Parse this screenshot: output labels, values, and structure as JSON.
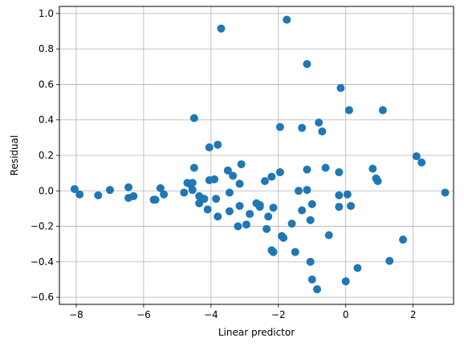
{
  "chart_data": {
    "type": "scatter",
    "title": "",
    "xlabel": "Linear predictor",
    "ylabel": "Residual",
    "xlim": [
      -8.5,
      3.2
    ],
    "ylim": [
      -0.64,
      1.04
    ],
    "xticks": [
      -8,
      -6,
      -4,
      -2,
      0,
      2
    ],
    "xtick_labels": [
      "−8",
      "−6",
      "−4",
      "−2",
      "0",
      "2"
    ],
    "yticks": [
      -0.6,
      -0.4,
      -0.2,
      0.0,
      0.2,
      0.4,
      0.6,
      0.8,
      1.0
    ],
    "ytick_labels": [
      "−0.6",
      "−0.4",
      "−0.2",
      "0.0",
      "0.2",
      "0.4",
      "0.6",
      "0.8",
      "1.0"
    ],
    "grid": true,
    "point_color": "#1f77b4",
    "points": [
      {
        "x": -8.05,
        "y": 0.01
      },
      {
        "x": -7.9,
        "y": -0.02
      },
      {
        "x": -7.35,
        "y": -0.025
      },
      {
        "x": -7.0,
        "y": 0.005
      },
      {
        "x": -6.45,
        "y": 0.02
      },
      {
        "x": -6.45,
        "y": -0.04
      },
      {
        "x": -6.3,
        "y": -0.03
      },
      {
        "x": -5.7,
        "y": -0.05
      },
      {
        "x": -5.65,
        "y": -0.05
      },
      {
        "x": -5.5,
        "y": 0.015
      },
      {
        "x": -5.4,
        "y": -0.02
      },
      {
        "x": -4.8,
        "y": -0.01
      },
      {
        "x": -4.7,
        "y": 0.045
      },
      {
        "x": -4.6,
        "y": 0.035
      },
      {
        "x": -4.55,
        "y": 0.045
      },
      {
        "x": -4.55,
        "y": 0.005
      },
      {
        "x": -4.5,
        "y": 0.41
      },
      {
        "x": -4.5,
        "y": 0.13
      },
      {
        "x": -4.35,
        "y": -0.07
      },
      {
        "x": -4.35,
        "y": -0.03
      },
      {
        "x": -4.2,
        "y": -0.045
      },
      {
        "x": -4.1,
        "y": -0.105
      },
      {
        "x": -4.05,
        "y": 0.245
      },
      {
        "x": -4.05,
        "y": 0.06
      },
      {
        "x": -3.9,
        "y": 0.065
      },
      {
        "x": -3.85,
        "y": -0.045
      },
      {
        "x": -3.8,
        "y": -0.145
      },
      {
        "x": -3.8,
        "y": 0.26
      },
      {
        "x": -3.7,
        "y": 0.915
      },
      {
        "x": -3.5,
        "y": 0.115
      },
      {
        "x": -3.45,
        "y": -0.01
      },
      {
        "x": -3.45,
        "y": -0.115
      },
      {
        "x": -3.35,
        "y": 0.085
      },
      {
        "x": -3.2,
        "y": -0.2
      },
      {
        "x": -3.15,
        "y": 0.04
      },
      {
        "x": -3.15,
        "y": -0.085
      },
      {
        "x": -3.1,
        "y": 0.15
      },
      {
        "x": -2.95,
        "y": -0.19
      },
      {
        "x": -2.85,
        "y": -0.13
      },
      {
        "x": -2.65,
        "y": -0.07
      },
      {
        "x": -2.55,
        "y": -0.08
      },
      {
        "x": -2.55,
        "y": -0.09
      },
      {
        "x": -2.4,
        "y": 0.055
      },
      {
        "x": -2.35,
        "y": -0.215
      },
      {
        "x": -2.3,
        "y": -0.145
      },
      {
        "x": -2.2,
        "y": 0.08
      },
      {
        "x": -2.2,
        "y": -0.335
      },
      {
        "x": -2.15,
        "y": -0.345
      },
      {
        "x": -2.15,
        "y": -0.095
      },
      {
        "x": -1.95,
        "y": 0.36
      },
      {
        "x": -1.95,
        "y": 0.105
      },
      {
        "x": -1.9,
        "y": -0.255
      },
      {
        "x": -1.85,
        "y": -0.265
      },
      {
        "x": -1.75,
        "y": 0.965
      },
      {
        "x": -1.6,
        "y": -0.185
      },
      {
        "x": -1.5,
        "y": -0.345
      },
      {
        "x": -1.4,
        "y": 0.0
      },
      {
        "x": -1.3,
        "y": 0.355
      },
      {
        "x": -1.3,
        "y": -0.11
      },
      {
        "x": -1.15,
        "y": 0.715
      },
      {
        "x": -1.15,
        "y": 0.12
      },
      {
        "x": -1.15,
        "y": 0.005
      },
      {
        "x": -1.05,
        "y": -0.4
      },
      {
        "x": -1.05,
        "y": -0.165
      },
      {
        "x": -1.0,
        "y": -0.075
      },
      {
        "x": -1.0,
        "y": -0.5
      },
      {
        "x": -0.85,
        "y": -0.555
      },
      {
        "x": -0.8,
        "y": 0.385
      },
      {
        "x": -0.7,
        "y": 0.335
      },
      {
        "x": -0.6,
        "y": 0.13
      },
      {
        "x": -0.5,
        "y": -0.25
      },
      {
        "x": -0.2,
        "y": 0.105
      },
      {
        "x": -0.2,
        "y": -0.025
      },
      {
        "x": -0.2,
        "y": -0.09
      },
      {
        "x": -0.15,
        "y": 0.58
      },
      {
        "x": 0.0,
        "y": -0.51
      },
      {
        "x": 0.05,
        "y": -0.02
      },
      {
        "x": 0.1,
        "y": 0.455
      },
      {
        "x": 0.15,
        "y": -0.085
      },
      {
        "x": 0.35,
        "y": -0.435
      },
      {
        "x": 0.8,
        "y": 0.125
      },
      {
        "x": 0.9,
        "y": 0.07
      },
      {
        "x": 0.95,
        "y": 0.055
      },
      {
        "x": 1.1,
        "y": 0.455
      },
      {
        "x": 1.3,
        "y": -0.395
      },
      {
        "x": 1.7,
        "y": -0.275
      },
      {
        "x": 2.1,
        "y": 0.195
      },
      {
        "x": 2.25,
        "y": 0.16
      },
      {
        "x": 2.95,
        "y": -0.01
      }
    ]
  }
}
